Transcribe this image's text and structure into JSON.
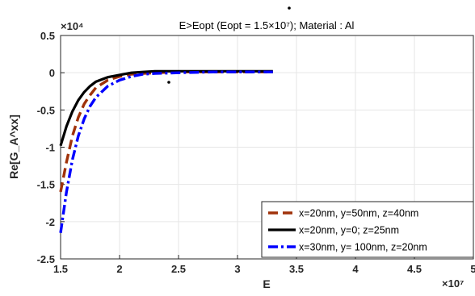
{
  "chart_data": {
    "type": "line",
    "title": "E>Eopt (Eopt = 1.5×10⁷); Material : Al",
    "xlabel": "E",
    "ylabel": "Re[G_A^xx]",
    "x_multiplier": "×10⁷",
    "y_multiplier": "×10⁴",
    "xlim": [
      1.5,
      5
    ],
    "ylim": [
      -2.5,
      0.5
    ],
    "x_ticks": [
      "1.5",
      "2",
      "2.5",
      "3",
      "3.5",
      "4",
      "4.5",
      "5"
    ],
    "y_ticks": [
      "0.5",
      "0",
      "-0.5",
      "-1",
      "-1.5",
      "-2",
      "-2.5"
    ],
    "grid": true,
    "legend_position": "bottom-right",
    "series": [
      {
        "name": "x=20nm, y=50nm, z=40nm",
        "color": "#a0320a",
        "style": "dashed",
        "x": [
          1.5,
          1.55,
          1.6,
          1.65,
          1.7,
          1.75,
          1.8,
          1.9,
          2.0,
          2.1,
          2.2,
          2.3,
          2.5,
          2.8,
          3.3
        ],
        "y": [
          -1.6,
          -1.2,
          -0.85,
          -0.6,
          -0.42,
          -0.3,
          -0.2,
          -0.1,
          -0.05,
          -0.02,
          -0.01,
          0,
          0.01,
          0.01,
          0.01
        ]
      },
      {
        "name": "x=20nm, y=0; z=25nm",
        "color": "#000000",
        "style": "solid",
        "x": [
          1.5,
          1.55,
          1.6,
          1.65,
          1.7,
          1.75,
          1.8,
          1.9,
          2.0,
          2.1,
          2.2,
          2.3,
          2.5,
          2.8,
          3.3
        ],
        "y": [
          -0.98,
          -0.72,
          -0.52,
          -0.37,
          -0.26,
          -0.18,
          -0.12,
          -0.06,
          -0.03,
          0.0,
          0.01,
          0.02,
          0.02,
          0.02,
          0.02
        ]
      },
      {
        "name": "x=30nm, y= 100nm, z=20nm",
        "color": "#0000ff",
        "style": "dashdot",
        "x": [
          1.5,
          1.55,
          1.6,
          1.65,
          1.7,
          1.75,
          1.8,
          1.9,
          2.0,
          2.1,
          2.2,
          2.3,
          2.5,
          2.8,
          3.3
        ],
        "y": [
          -2.15,
          -1.6,
          -1.17,
          -0.85,
          -0.62,
          -0.45,
          -0.33,
          -0.18,
          -0.1,
          -0.05,
          -0.02,
          -0.01,
          0,
          0.01,
          0.01
        ]
      }
    ]
  }
}
